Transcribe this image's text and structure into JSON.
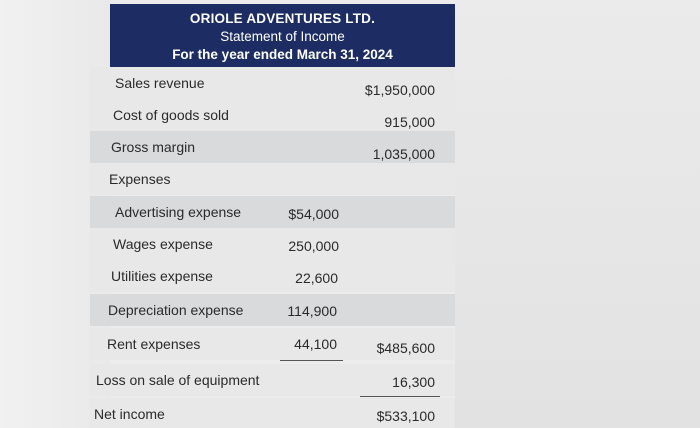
{
  "statement": {
    "company": "ORIOLE ADVENTURES LTD.",
    "title": "Statement of Income",
    "period": "For the year ended March 31, 2024"
  },
  "rows": [
    {
      "label": "Sales revenue",
      "col1": "",
      "col2": "$1,950,000"
    },
    {
      "label": "Cost of goods sold",
      "col1": "",
      "col2": "915,000"
    },
    {
      "label": "Gross margin",
      "col1": "",
      "col2": "1,035,000"
    },
    {
      "label": "Expenses",
      "col1": "",
      "col2": ""
    },
    {
      "label": "Advertising expense",
      "col1": "$54,000",
      "col2": ""
    },
    {
      "label": "Wages expense",
      "col1": "250,000",
      "col2": ""
    },
    {
      "label": "Utilities expense",
      "col1": "22,600",
      "col2": ""
    },
    {
      "label": "Depreciation expense",
      "col1": "114,900",
      "col2": ""
    },
    {
      "label": "Rent expenses",
      "col1": "44,100",
      "col2": "$485,600"
    },
    {
      "label": "Loss on sale of equipment",
      "col1": "",
      "col2": "16,300"
    },
    {
      "label": "Net income",
      "col1": "",
      "col2": "$533,100"
    }
  ]
}
